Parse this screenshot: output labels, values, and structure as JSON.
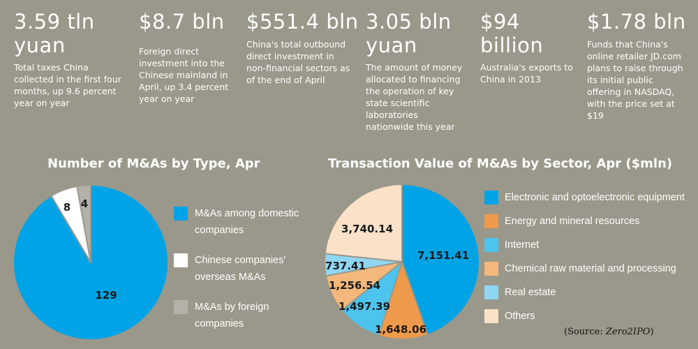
{
  "stats": [
    {
      "big": "3.59 tln",
      "big2": "yuan",
      "desc": [
        "Total taxes China",
        "collected in the first four",
        "months, up 9.6 percent",
        "year on year"
      ]
    },
    {
      "big": "$8.7 bln",
      "big2": "",
      "desc": [
        "Foreign direct",
        "investment into the",
        "Chinese mainland in",
        "April, up 3.4 percent",
        "year on year"
      ]
    },
    {
      "big": "$551.4 bln",
      "big2": "",
      "desc": [
        "China's total outbound",
        "direct investment in",
        "non-financial sectors as",
        "of the end of April"
      ]
    },
    {
      "big": "3.05 bln",
      "big2": "yuan",
      "desc": [
        "The amount of money",
        "allocated to financing",
        "the operation of key",
        "state scientific",
        "laboratories",
        "nationwide this year"
      ]
    },
    {
      "big": "$94",
      "big2": "billion",
      "desc": [
        "Australia's exports to",
        "China in 2013"
      ]
    },
    {
      "big": "$1.78 bln",
      "big2": "",
      "desc": [
        "Funds that China's",
        "online retailer JD.com",
        "plans to raise through",
        "its initial public",
        "offering in NASDAQ,",
        "with the price set at",
        "$19"
      ]
    }
  ],
  "colors": {
    "background": "#9a988a",
    "domestic": "#00a3e6",
    "overseas": "#ffffff",
    "foreign": "#b3b1a8",
    "electronic": "#00a3e6",
    "energy": "#ef9a4a",
    "internet": "#4dc4ee",
    "chemical": "#f4b77c",
    "realestate": "#8fd6f2",
    "others": "#fae1c8"
  },
  "chart_data": [
    {
      "type": "pie",
      "title": "Number of M&As by Type, Apr",
      "legend_position": "right",
      "slices": [
        {
          "label": "M&As among domestic companies",
          "value": 129,
          "value_label": "129",
          "color": "#00a3e6"
        },
        {
          "label": "Chinese companies' overseas M&As",
          "value": 8,
          "value_label": "8",
          "color": "#ffffff"
        },
        {
          "label": "M&As by foreign companies",
          "value": 4,
          "value_label": "4",
          "color": "#b3b1a8"
        }
      ]
    },
    {
      "type": "pie",
      "title": "Transaction Value of M&As by Sector, Apr ($mln)",
      "legend_position": "right",
      "slices": [
        {
          "label": "Electronic and optoelectronic equipment",
          "value": 7151.41,
          "value_label": "7,151.41",
          "color": "#00a3e6"
        },
        {
          "label": "Energy and mineral resources",
          "value": 1648.06,
          "value_label": "1,648.06",
          "color": "#ef9a4a"
        },
        {
          "label": "Internet",
          "value": 1497.39,
          "value_label": "1,497.39",
          "color": "#4dc4ee"
        },
        {
          "label": "Chemical raw material and processing",
          "value": 1256.54,
          "value_label": "1,256.54",
          "color": "#f4b77c"
        },
        {
          "label": "Real estate",
          "value": 737.41,
          "value_label": "737.41",
          "color": "#8fd6f2"
        },
        {
          "label": "Others",
          "value": 3740.14,
          "value_label": "3,740.14",
          "color": "#fae1c8"
        }
      ]
    }
  ],
  "source": {
    "prefix": "(Source: ",
    "name": "Zero2IPO",
    "suffix": ")"
  }
}
